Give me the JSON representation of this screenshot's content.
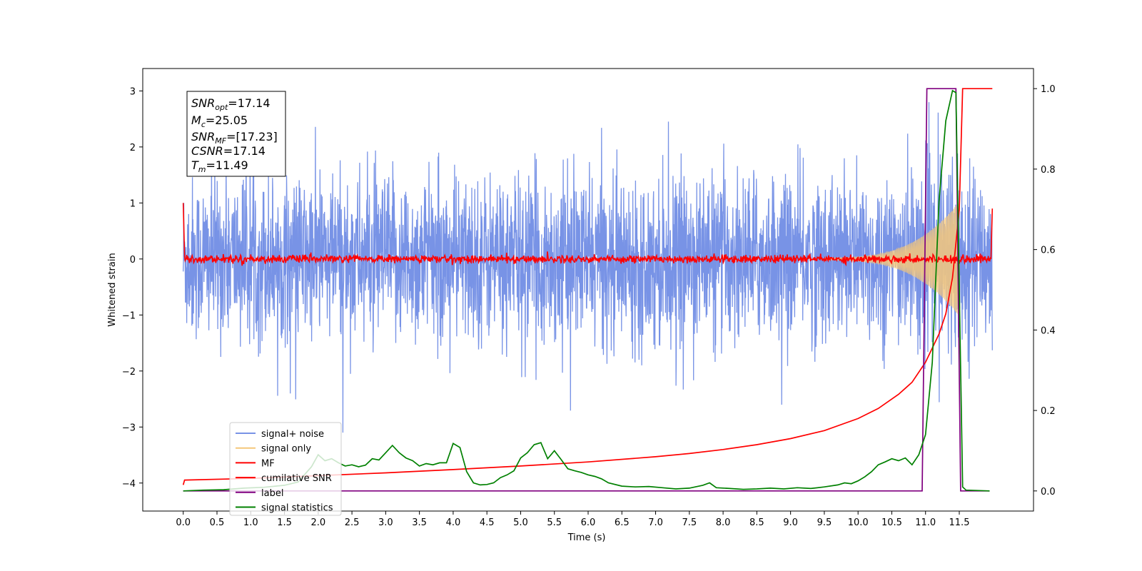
{
  "chart_data": {
    "type": "line",
    "xlabel": "Time (s)",
    "ylabel": "Whitened strain",
    "x_ticks": [
      "0.0",
      "0.5",
      "1.0",
      "1.5",
      "2.0",
      "2.5",
      "3.0",
      "3.5",
      "4.0",
      "4.5",
      "5.0",
      "5.5",
      "6.0",
      "6.5",
      "7.0",
      "7.5",
      "8.0",
      "8.5",
      "9.0",
      "9.5",
      "10.0",
      "10.5",
      "11.0",
      "11.5"
    ],
    "y_left_ticks": [
      "3",
      "2",
      "1",
      "0",
      "−1",
      "−2",
      "−3",
      "−4"
    ],
    "y_right_ticks": [
      "1.0",
      "0.8",
      "0.6",
      "0.4",
      "0.2",
      "0.0"
    ],
    "xlim": [
      -0.6,
      12.6
    ],
    "ylim_left": [
      -4.5,
      3.4
    ],
    "ylim_right": [
      -0.05,
      1.05
    ],
    "x_end": 11.99,
    "annotation": {
      "snr_opt": {
        "label": "SNR",
        "sub": "opt",
        "value": "=17.14"
      },
      "mc": {
        "label": "M",
        "sub": "c",
        "value": "=25.05"
      },
      "snr_mf": {
        "label": "SNR",
        "sub": "MF",
        "value": "=[17.23]"
      },
      "csnr": {
        "label": "CSNR",
        "sub": "",
        "value": "=17.14"
      },
      "tm": {
        "label": "T",
        "sub": "m",
        "value": "=11.49"
      }
    },
    "series": [
      {
        "name": "signal+ noise",
        "color": "#7893e6",
        "axis": "left",
        "description": "noise band with std ~0.75, peaks to ~3"
      },
      {
        "name": "signal only",
        "color": "#f5c77a",
        "axis": "left",
        "description": "chirp growing to ~1 amplitude near t=11.5"
      },
      {
        "name": "MF",
        "color": "#ff0000",
        "axis": "left",
        "description": "matched filter output near 0"
      },
      {
        "name": "cumilative SNR",
        "color": "#ff0000",
        "axis": "right",
        "x": [
          0.0,
          0.02,
          1.0,
          2.0,
          3.0,
          4.0,
          5.0,
          6.0,
          7.0,
          7.5,
          8.0,
          8.5,
          9.0,
          9.5,
          10.0,
          10.3,
          10.6,
          10.8,
          11.0,
          11.2,
          11.3,
          11.4,
          11.5,
          11.55
        ],
        "y": [
          0.015,
          0.027,
          0.031,
          0.038,
          0.045,
          0.053,
          0.062,
          0.072,
          0.085,
          0.093,
          0.103,
          0.115,
          0.13,
          0.15,
          0.18,
          0.205,
          0.24,
          0.27,
          0.32,
          0.39,
          0.44,
          0.53,
          0.7,
          1.0
        ]
      },
      {
        "name": "label",
        "color": "#800080",
        "axis": "right",
        "x": [
          0.0,
          10.95,
          11.02,
          11.45,
          11.52,
          11.95
        ],
        "y": [
          0.0,
          0.0,
          1.0,
          1.0,
          0.0,
          0.0
        ]
      },
      {
        "name": "signal statistics",
        "color": "#008000",
        "axis": "right",
        "x": [
          0.0,
          0.3,
          0.6,
          0.9,
          1.2,
          1.5,
          1.7,
          1.9,
          2.0,
          2.1,
          2.2,
          2.3,
          2.4,
          2.5,
          2.6,
          2.7,
          2.8,
          2.9,
          3.0,
          3.1,
          3.2,
          3.3,
          3.4,
          3.5,
          3.6,
          3.7,
          3.8,
          3.9,
          4.0,
          4.1,
          4.2,
          4.3,
          4.4,
          4.5,
          4.6,
          4.7,
          4.8,
          4.9,
          5.0,
          5.1,
          5.2,
          5.3,
          5.4,
          5.5,
          5.6,
          5.7,
          5.8,
          5.9,
          6.0,
          6.1,
          6.2,
          6.3,
          6.5,
          6.7,
          6.9,
          7.1,
          7.3,
          7.5,
          7.7,
          7.8,
          7.9,
          8.1,
          8.3,
          8.5,
          8.7,
          8.9,
          9.1,
          9.3,
          9.5,
          9.7,
          9.8,
          9.9,
          10.0,
          10.1,
          10.2,
          10.3,
          10.4,
          10.5,
          10.6,
          10.7,
          10.8,
          10.9,
          11.0,
          11.1,
          11.2,
          11.3,
          11.4,
          11.45,
          11.55,
          11.6,
          11.95
        ],
        "y": [
          0.0,
          0.002,
          0.003,
          0.007,
          0.009,
          0.014,
          0.022,
          0.06,
          0.09,
          0.075,
          0.08,
          0.07,
          0.062,
          0.065,
          0.06,
          0.064,
          0.08,
          0.077,
          0.095,
          0.113,
          0.095,
          0.082,
          0.075,
          0.062,
          0.068,
          0.065,
          0.07,
          0.07,
          0.118,
          0.108,
          0.048,
          0.02,
          0.015,
          0.016,
          0.02,
          0.033,
          0.04,
          0.05,
          0.082,
          0.095,
          0.115,
          0.12,
          0.08,
          0.1,
          0.078,
          0.055,
          0.05,
          0.046,
          0.04,
          0.036,
          0.03,
          0.02,
          0.012,
          0.01,
          0.011,
          0.008,
          0.005,
          0.007,
          0.014,
          0.02,
          0.008,
          0.006,
          0.004,
          0.005,
          0.007,
          0.005,
          0.008,
          0.006,
          0.01,
          0.015,
          0.02,
          0.018,
          0.025,
          0.035,
          0.048,
          0.065,
          0.072,
          0.08,
          0.075,
          0.082,
          0.065,
          0.09,
          0.14,
          0.32,
          0.72,
          0.92,
          0.995,
          0.99,
          0.01,
          0.002,
          0.0
        ]
      }
    ],
    "legend": {
      "placement": "lower-left",
      "entries": [
        {
          "label": "signal+ noise",
          "color": "#7893e6"
        },
        {
          "label": "signal only",
          "color": "#f5c77a"
        },
        {
          "label": "MF",
          "color": "#ff0000"
        },
        {
          "label": "cumilative SNR",
          "color": "#ff0000"
        },
        {
          "label": "label",
          "color": "#800080"
        },
        {
          "label": "signal statistics",
          "color": "#008000"
        }
      ]
    }
  }
}
